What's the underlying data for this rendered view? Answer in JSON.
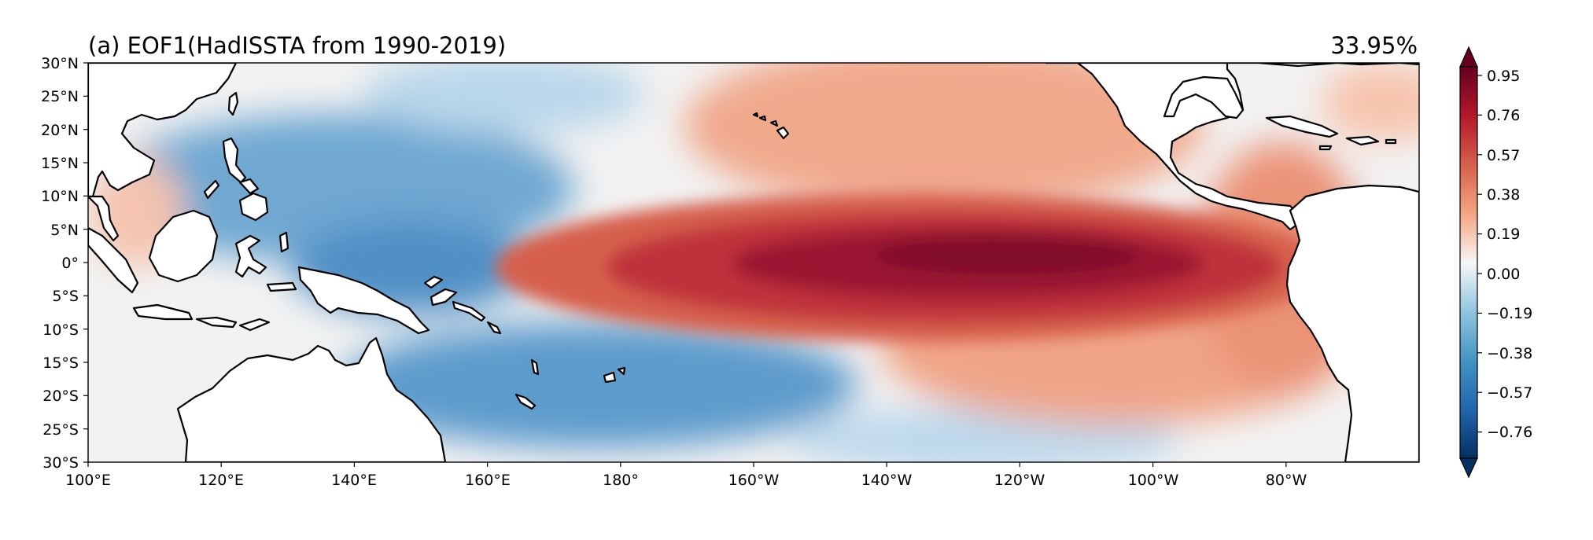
{
  "title": "(a) EOF1(HadISSTA from 1990-2019)",
  "variance": "33.95%",
  "axes": {
    "lon_ticks": [
      "100°E",
      "120°E",
      "140°E",
      "160°E",
      "180°",
      "160°W",
      "140°W",
      "120°W",
      "100°W",
      "80°W"
    ],
    "lat_ticks": [
      "30°N",
      "25°N",
      "20°N",
      "15°N",
      "10°N",
      "5°N",
      "0°",
      "5°S",
      "10°S",
      "15°S",
      "20°S",
      "25°S",
      "30°S"
    ],
    "lon_range": [
      100,
      300
    ],
    "lat_range": [
      -30,
      30
    ]
  },
  "colorbar": {
    "ticks": [
      "0.95",
      "0.76",
      "0.57",
      "0.38",
      "0.19",
      "0.00",
      "−0.19",
      "−0.38",
      "−0.57",
      "−0.76"
    ],
    "range": [
      -0.95,
      0.95
    ],
    "extend": "both",
    "colormap": "RdBu_r"
  },
  "colors": {
    "dark_red": "#67001f",
    "red": "#b2182b",
    "light_red": "#f4a582",
    "white": "#f7f7f7",
    "light_blue": "#92c5de",
    "blue": "#2166ac",
    "dark_blue": "#053061",
    "land": "#ffffff",
    "coast": "#000000"
  }
}
